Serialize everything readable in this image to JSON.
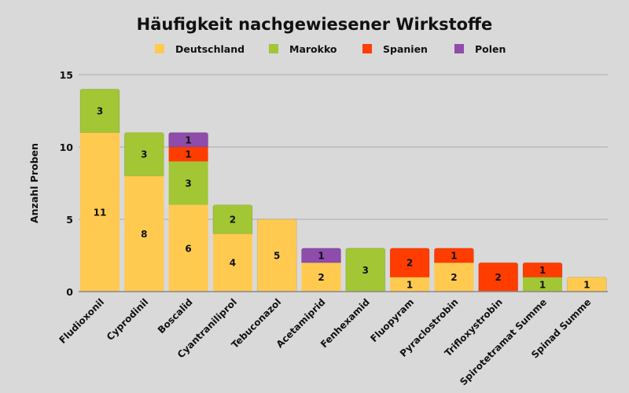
{
  "chart_data": {
    "type": "bar",
    "stacked": true,
    "title": "Häufigkeit nachgewiesener Wirkstoffe",
    "xlabel": "",
    "ylabel": "Anzahl Proben",
    "ylim": [
      0,
      15
    ],
    "yticks": [
      0,
      5,
      10,
      15
    ],
    "ytick_labels": [
      "0",
      "5",
      "10",
      "15"
    ],
    "grid": true,
    "legend_position": "top",
    "categories": [
      "Fludioxonil",
      "Cyprodinil",
      "Boscalid",
      "Cyantraniliprol",
      "Tebuconazol",
      "Acetamiprid",
      "Fenhexamid",
      "Fluopyram",
      "Pyraclostrobin",
      "Trifloxystrobin",
      "Spirotetramat Summe",
      "Spinad Summe"
    ],
    "series": [
      {
        "name": "Deutschland",
        "color": "#ffca4f",
        "values": [
          11,
          8,
          6,
          4,
          5,
          2,
          0,
          1,
          2,
          0,
          0,
          1
        ]
      },
      {
        "name": "Marokko",
        "color": "#a2c634",
        "values": [
          3,
          3,
          3,
          2,
          0,
          0,
          3,
          0,
          0,
          0,
          1,
          0
        ]
      },
      {
        "name": "Spanien",
        "color": "#ff3d00",
        "values": [
          0,
          0,
          1,
          0,
          0,
          0,
          0,
          2,
          1,
          2,
          1,
          0
        ]
      },
      {
        "name": "Polen",
        "color": "#8e4cab",
        "values": [
          0,
          0,
          1,
          0,
          0,
          1,
          0,
          0,
          0,
          0,
          0,
          0
        ]
      }
    ]
  }
}
